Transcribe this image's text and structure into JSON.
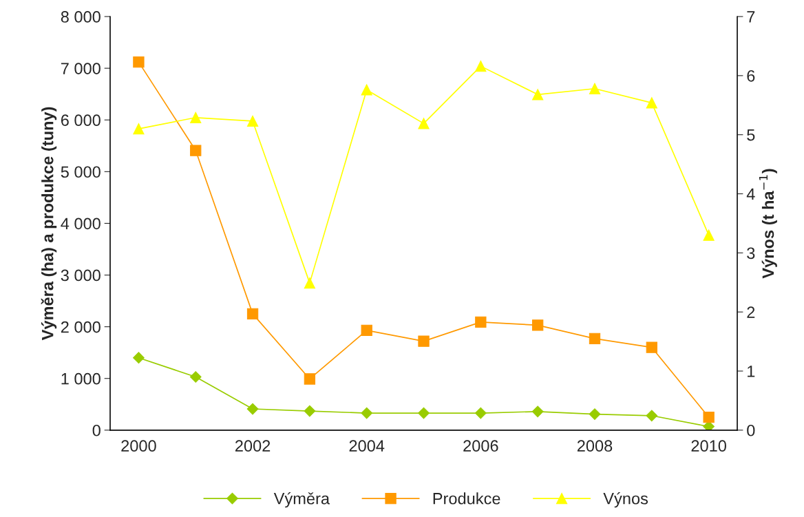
{
  "chart_data": {
    "type": "line",
    "categories": [
      "2000",
      null,
      "2002",
      null,
      "2004",
      null,
      "2006",
      null,
      "2008",
      null,
      "2010"
    ],
    "ylabel": "Výměra (ha) a produkce (tuny)",
    "y2label": "Výnos (t ha$^{−1}$)",
    "ylim": [
      0,
      8000
    ],
    "yticks": [
      0,
      {
        "value": 1000,
        "label": "1 000"
      },
      {
        "value": 2000,
        "label": "2 000"
      },
      {
        "value": 3000,
        "label": "3 000"
      },
      {
        "value": 4000,
        "label": "4 000"
      },
      {
        "value": 5000,
        "label": "5 000"
      },
      {
        "value": 6000,
        "label": "6 000"
      },
      {
        "value": 7000,
        "label": "7 000"
      },
      {
        "value": 8000,
        "label": "8 000"
      }
    ],
    "y2lim": [
      0,
      7
    ],
    "y2ticks": [
      0,
      1,
      2,
      3,
      4,
      5,
      6,
      7
    ],
    "grid": false,
    "legend": "bottom",
    "series": [
      {
        "name": "Výměra",
        "color": "#99cc00",
        "marker": "diamond",
        "values": [
          1400,
          1030,
          410,
          370,
          330,
          330,
          330,
          360,
          310,
          280,
          70
        ]
      },
      {
        "name": "Produkce",
        "color": "#ff9900",
        "marker": "square",
        "values": [
          7120,
          5410,
          2250,
          990,
          1930,
          1720,
          2090,
          2030,
          1770,
          1600,
          250
        ]
      },
      {
        "name": "Výnos",
        "color": "#ffff00",
        "marker": "triangle",
        "axis": "y2",
        "values": [
          5.1,
          5.29,
          5.23,
          2.49,
          5.76,
          5.19,
          6.16,
          5.68,
          5.78,
          5.54,
          3.3
        ]
      }
    ]
  }
}
